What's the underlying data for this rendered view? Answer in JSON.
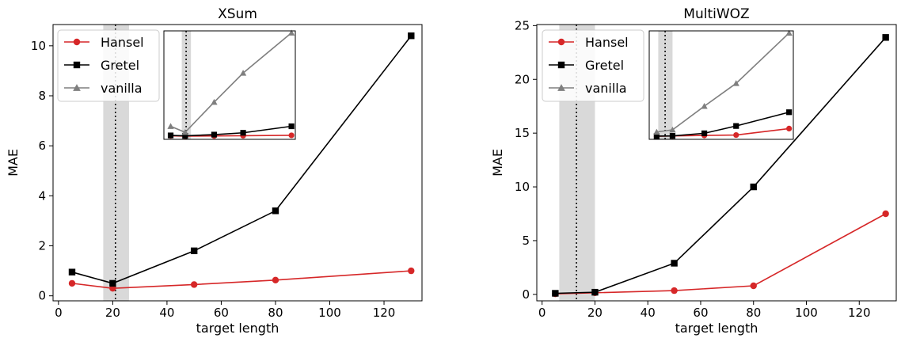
{
  "chart_data": [
    {
      "type": "line",
      "title": "XSum",
      "xlabel": "target length",
      "ylabel": "MAE",
      "xlim": [
        -2,
        134
      ],
      "ylim": [
        -0.2,
        10.85
      ],
      "xticks": [
        0,
        20,
        40,
        60,
        80,
        100,
        120
      ],
      "yticks": [
        0,
        2,
        4,
        6,
        8,
        10
      ],
      "reference_line_x": 21,
      "shaded_band_x": [
        16.5,
        26
      ],
      "legend_position": "top-left",
      "series": [
        {
          "name": "Hansel",
          "color": "#d62728",
          "marker": "circle",
          "x": [
            5,
            20,
            50,
            80,
            130
          ],
          "y": [
            0.5,
            0.3,
            0.45,
            0.63,
            1.0
          ]
        },
        {
          "name": "Gretel",
          "color": "#000000",
          "marker": "square",
          "x": [
            5,
            20,
            50,
            80,
            130
          ],
          "y": [
            0.95,
            0.5,
            1.8,
            3.4,
            10.4
          ]
        }
      ],
      "inset": {
        "ylim": [
          -0.3,
          10.5
        ],
        "xlim": [
          -2,
          134
        ],
        "series": [
          {
            "name": "Hansel",
            "color": "#d62728",
            "marker": "circle",
            "x": [
              5,
              20,
              50,
              80,
              130
            ],
            "y": [
              0.05,
              0.02,
              0.04,
              0.06,
              0.1
            ]
          },
          {
            "name": "Gretel",
            "color": "#000000",
            "marker": "square",
            "x": [
              5,
              20,
              50,
              80,
              130
            ],
            "y": [
              0.09,
              0.05,
              0.17,
              0.35,
              1.0
            ]
          },
          {
            "name": "vanilla",
            "color": "#7f7f7f",
            "marker": "triangle",
            "x": [
              5,
              20,
              50,
              80,
              130
            ],
            "y": [
              1.0,
              0.4,
              3.4,
              6.3,
              10.3
            ]
          }
        ]
      }
    },
    {
      "type": "line",
      "title": "MultiWOZ",
      "xlabel": "target length",
      "ylabel": "MAE",
      "xlim": [
        -2,
        134
      ],
      "ylim": [
        -0.6,
        25.1
      ],
      "xticks": [
        0,
        20,
        40,
        60,
        80,
        100,
        120
      ],
      "yticks": [
        0,
        5,
        10,
        15,
        20,
        25
      ],
      "reference_line_x": 13,
      "shaded_band_x": [
        6.5,
        20
      ],
      "legend_position": "top-left",
      "series": [
        {
          "name": "Hansel",
          "color": "#d62728",
          "marker": "circle",
          "x": [
            5,
            20,
            50,
            80,
            130
          ],
          "y": [
            0.05,
            0.15,
            0.35,
            0.8,
            7.5
          ]
        },
        {
          "name": "Gretel",
          "color": "#000000",
          "marker": "square",
          "x": [
            5,
            20,
            50,
            80,
            130
          ],
          "y": [
            0.1,
            0.2,
            2.9,
            10.0,
            23.9
          ]
        }
      ],
      "inset": {
        "ylim": [
          -0.7,
          24.5
        ],
        "xlim": [
          -2,
          134
        ],
        "series": [
          {
            "name": "Hansel",
            "color": "#d62728",
            "marker": "circle",
            "x": [
              5,
              20,
              50,
              80,
              130
            ],
            "y": [
              0.02,
              0.08,
              0.2,
              0.3,
              1.8
            ]
          },
          {
            "name": "Gretel",
            "color": "#000000",
            "marker": "square",
            "x": [
              5,
              20,
              50,
              80,
              130
            ],
            "y": [
              0.05,
              0.1,
              0.7,
              2.4,
              5.6
            ]
          },
          {
            "name": "vanilla",
            "color": "#7f7f7f",
            "marker": "triangle",
            "x": [
              5,
              20,
              50,
              80,
              130
            ],
            "y": [
              1.0,
              1.5,
              7.0,
              12.3,
              24.0
            ]
          }
        ]
      }
    }
  ]
}
